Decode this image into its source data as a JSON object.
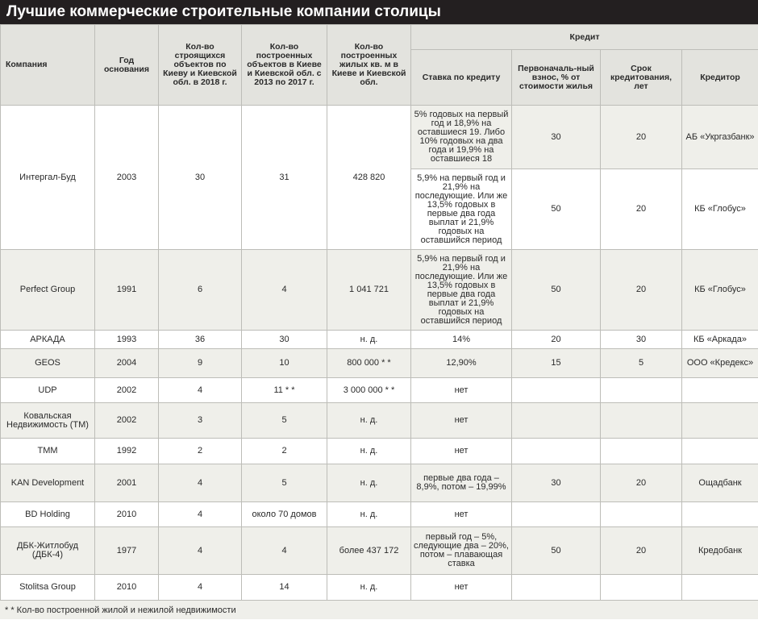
{
  "title": "Лучшие коммерческие строительные компании столицы",
  "headers": {
    "company": "Компания",
    "year": "Год основания",
    "building_2018": "Кол-во строящихся объектов по Киеву и Киевской обл. в 2018 г.",
    "built_2013_2017": "Кол-во построенных объектов в Киеве и Киевской обл. с 2013 по 2017 г.",
    "built_sqm": "Кол-во построенных жилых кв. м в Киеве и Киевской обл.",
    "credit": "Кредит",
    "rate": "Ставка по кредиту",
    "down_payment": "Первоначаль-ный взнос, % от стоимости жилья",
    "term": "Срок кредитования, лет",
    "lender": "Кредитор"
  },
  "rows": [
    {
      "company": "Интергал-Буд",
      "year": "2003",
      "building": "30",
      "built": "31",
      "sqm": "428 820",
      "credits": [
        {
          "rate": "5% годовых на первый год и 18,9% на оставшиеся 19. Либо 10% годовых на два года и 19,9% на оставшиеся 18",
          "down": "30",
          "term": "20",
          "lender": "АБ «Укргазбанк»"
        },
        {
          "rate": "5,9% на первый год и 21,9% на последующие. Или же 13,5% годовых в первые два года выплат и 21,9% годовых на оставшийся период",
          "down": "50",
          "term": "20",
          "lender": "КБ «Глобус»"
        }
      ]
    },
    {
      "company": "Perfect Group",
      "year": "1991",
      "building": "6",
      "built": "4",
      "sqm": "1 041 721",
      "credits": [
        {
          "rate": "5,9% на первый год и 21,9% на последующие. Или же 13,5% годовых в первые два года выплат и 21,9% годовых на оставшийся период",
          "down": "50",
          "term": "20",
          "lender": "КБ «Глобус»"
        }
      ]
    },
    {
      "company": "АРКАДА",
      "year": "1993",
      "building": "36",
      "built": "30",
      "sqm": "н. д.",
      "credits": [
        {
          "rate": "14%",
          "down": "20",
          "term": "30",
          "lender": "КБ «Аркада»"
        }
      ]
    },
    {
      "company": "GEOS",
      "year": "2004",
      "building": "9",
      "built": "10",
      "sqm": "800 000 * *",
      "credits": [
        {
          "rate": "12,90%",
          "down": "15",
          "term": "5",
          "lender": "ООО «Кредекс»"
        }
      ]
    },
    {
      "company": "UDP",
      "year": "2002",
      "building": "4",
      "built": "11 * *",
      "sqm": "3 000 000 * *",
      "credits": [
        {
          "rate": "нет",
          "down": "",
          "term": "",
          "lender": ""
        }
      ]
    },
    {
      "company": "Ковальская Недвижимость (ТМ)",
      "year": "2002",
      "building": "3",
      "built": "5",
      "sqm": "н. д.",
      "credits": [
        {
          "rate": "нет",
          "down": "",
          "term": "",
          "lender": ""
        }
      ]
    },
    {
      "company": "ТММ",
      "year": "1992",
      "building": "2",
      "built": "2",
      "sqm": "н. д.",
      "credits": [
        {
          "rate": "нет",
          "down": "",
          "term": "",
          "lender": ""
        }
      ]
    },
    {
      "company": "KAN Development",
      "year": "2001",
      "building": "4",
      "built": "5",
      "sqm": "н. д.",
      "credits": [
        {
          "rate": "первые два года – 8,9%, потом – 19,99%",
          "down": "30",
          "term": "20",
          "lender": "Ощадбанк"
        }
      ]
    },
    {
      "company": "BD Holding",
      "year": "2010",
      "building": "4",
      "built": "около 70 домов",
      "sqm": "н. д.",
      "credits": [
        {
          "rate": "нет",
          "down": "",
          "term": "",
          "lender": ""
        }
      ]
    },
    {
      "company": "ДБК-Житлобуд (ДБК-4)",
      "year": "1977",
      "building": "4",
      "built": "4",
      "sqm": "более 437 172",
      "credits": [
        {
          "rate": "первый год – 5%, следующие два – 20%, потом – плавающая ставка",
          "down": "50",
          "term": "20",
          "lender": "Кредобанк"
        }
      ]
    },
    {
      "company": "Stolitsa Group",
      "year": "2010",
      "building": "4",
      "built": "14",
      "sqm": "н. д.",
      "credits": [
        {
          "rate": "нет",
          "down": "",
          "term": "",
          "lender": ""
        }
      ]
    }
  ],
  "footnote": "* * Кол-во построенной жилой и нежилой недвижимости"
}
